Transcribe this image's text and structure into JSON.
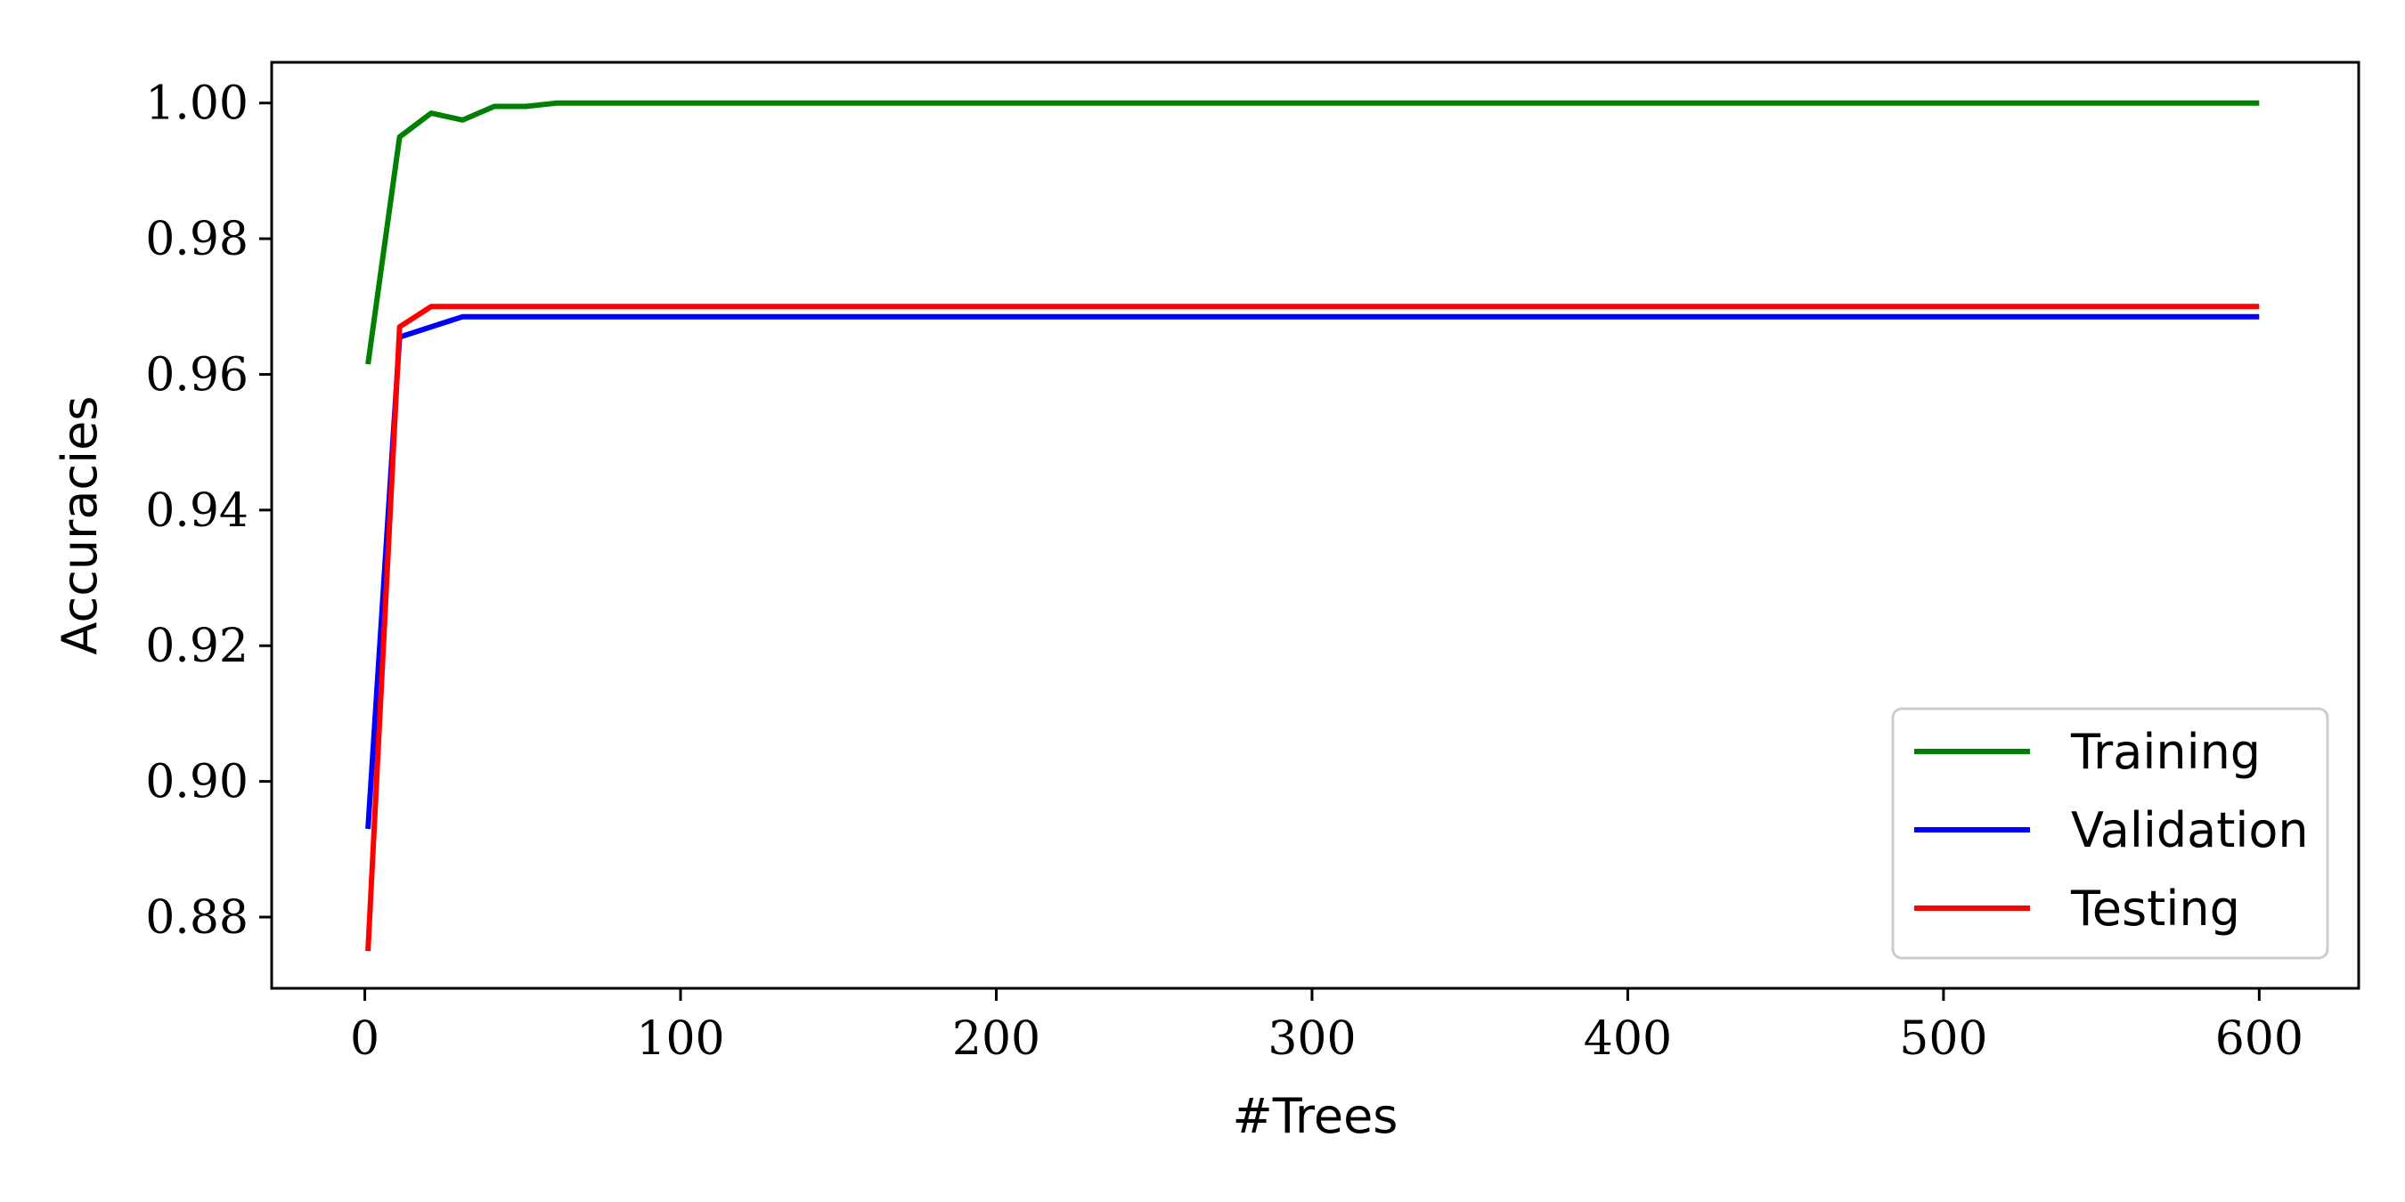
{
  "chart_data": {
    "type": "line",
    "title": "",
    "xlabel": "#Trees",
    "ylabel": "Accuracies",
    "xlim": [
      -29.5,
      631.5
    ],
    "ylim": [
      0.8695,
      1.006
    ],
    "xticks": [
      0,
      100,
      200,
      300,
      400,
      500,
      600
    ],
    "yticks": [
      0.88,
      0.9,
      0.92,
      0.94,
      0.96,
      0.98,
      1.0
    ],
    "ytick_labels": [
      "0.88",
      "0.90",
      "0.92",
      "0.94",
      "0.96",
      "0.98",
      "1.00"
    ],
    "grid": false,
    "legend_position": "lower-right",
    "series": [
      {
        "name": "Training",
        "color": "#008000",
        "x": [
          1,
          11,
          21,
          31,
          41,
          51,
          61,
          71,
          600
        ],
        "y": [
          0.9615,
          0.995,
          0.9985,
          0.9975,
          0.9995,
          0.9995,
          1.0,
          1.0,
          1.0
        ]
      },
      {
        "name": "Validation",
        "color": "#0000ff",
        "x": [
          1,
          11,
          21,
          31,
          41,
          600
        ],
        "y": [
          0.893,
          0.9655,
          0.967,
          0.9685,
          0.9685,
          0.9685
        ]
      },
      {
        "name": "Testing",
        "color": "#ff0000",
        "x": [
          1,
          11,
          21,
          31,
          41,
          600
        ],
        "y": [
          0.875,
          0.967,
          0.97,
          0.97,
          0.97,
          0.97
        ]
      }
    ]
  }
}
